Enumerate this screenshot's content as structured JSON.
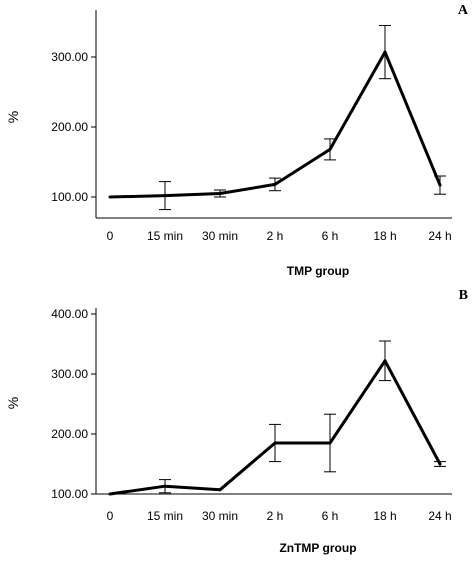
{
  "chart_data": [
    {
      "type": "line",
      "panel_label": "A",
      "title": "",
      "xlabel": "TMP group",
      "ylabel": "%",
      "categories": [
        "0",
        "15 min",
        "30 min",
        "2 h",
        "6 h",
        "18 h",
        "24 h"
      ],
      "values": [
        100,
        102,
        105,
        118,
        168,
        307,
        117
      ],
      "error": [
        0,
        20,
        5,
        9,
        15,
        38,
        13
      ],
      "yticks": [
        "100.00",
        "200.00",
        "300.00"
      ],
      "ylim": [
        90,
        360
      ],
      "grid": false,
      "legend": "none"
    },
    {
      "type": "line",
      "panel_label": "B",
      "title": "",
      "xlabel": "ZnTMP group",
      "ylabel": "%",
      "categories": [
        "0",
        "15 min",
        "30 min",
        "2 h",
        "6 h",
        "18 h",
        "24 h"
      ],
      "values": [
        100,
        113,
        107,
        185,
        185,
        322,
        150
      ],
      "error": [
        0,
        11,
        0,
        31,
        48,
        33,
        4
      ],
      "yticks": [
        "100.00",
        "200.00",
        "300.00",
        "400.00"
      ],
      "ylim": [
        95,
        420
      ],
      "grid": false,
      "legend": "none"
    }
  ]
}
